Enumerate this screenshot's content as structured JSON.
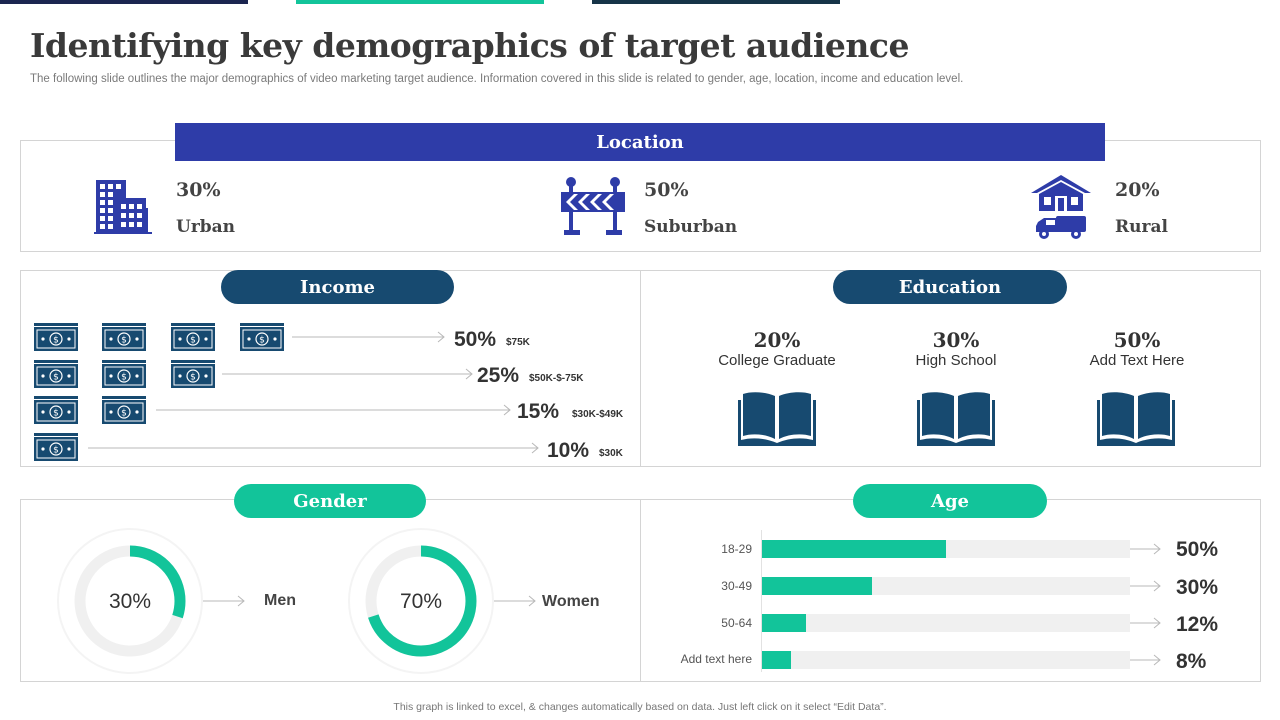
{
  "header": {
    "title": "Identifying key demographics of target audience",
    "subtitle": "The following slide outlines the major demographics of video marketing target audience. Information covered in this slide is related to gender, age, location, income and education level."
  },
  "colors": {
    "navy": "#174a70",
    "royal_blue": "#2e3ca8",
    "teal": "#12c49a",
    "track": "#f0f0f0"
  },
  "location": {
    "title": "Location",
    "items": [
      {
        "pct": "30%",
        "label": "Urban",
        "icon": "buildings-icon"
      },
      {
        "pct": "50%",
        "label": "Suburban",
        "icon": "road-barrier-icon"
      },
      {
        "pct": "20%",
        "label": "Rural",
        "icon": "farmhouse-truck-icon"
      }
    ]
  },
  "income": {
    "title": "Income",
    "rows": [
      {
        "pct": "50%",
        "range": "$75K",
        "bills": 4
      },
      {
        "pct": "25%",
        "range": "$50K-$-75K",
        "bills": 3
      },
      {
        "pct": "15%",
        "range": "$30K-$49K",
        "bills": 2
      },
      {
        "pct": "10%",
        "range": "$30K",
        "bills": 1
      }
    ]
  },
  "education": {
    "title": "Education",
    "items": [
      {
        "pct": "20%",
        "label": "College Graduate"
      },
      {
        "pct": "30%",
        "label": "High School"
      },
      {
        "pct": "50%",
        "label": "Add  Text Here"
      }
    ]
  },
  "gender": {
    "title": "Gender",
    "items": [
      {
        "value": 30,
        "pct": "30%",
        "label": "Men"
      },
      {
        "value": 70,
        "pct": "70%",
        "label": "Women"
      }
    ]
  },
  "age": {
    "title": "Age",
    "rows": [
      {
        "label": "18-29",
        "value": 50,
        "pct": "50%"
      },
      {
        "label": "30-49",
        "value": 30,
        "pct": "30%"
      },
      {
        "label": "50-64",
        "value": 12,
        "pct": "12%"
      },
      {
        "label": "Add text here",
        "value": 8,
        "pct": "8%"
      }
    ]
  },
  "footer": "This graph is linked to excel, & changes automatically  based on data.  Just left click on it select “Edit Data”."
}
